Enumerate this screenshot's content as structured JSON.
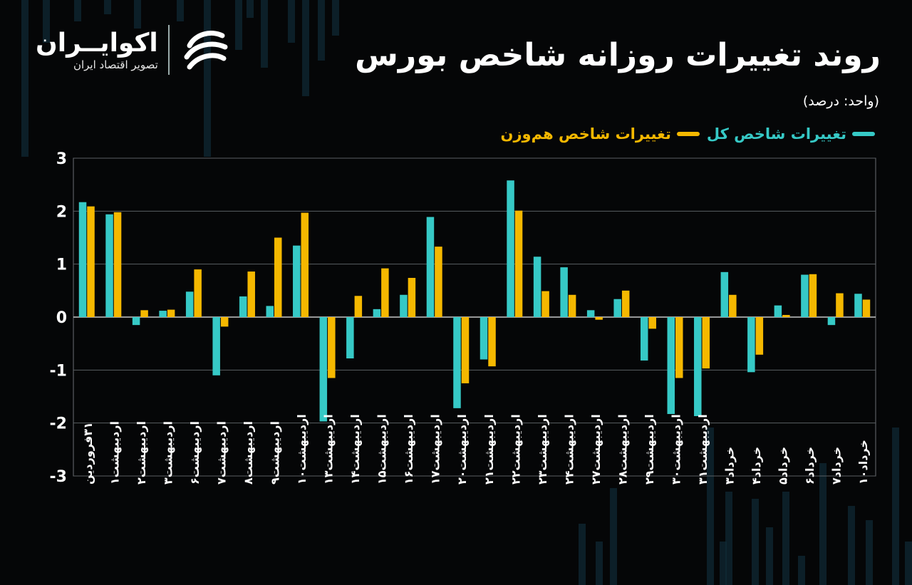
{
  "title": "روند تغییرات روزانه شاخص بورس",
  "unit_label": "(واحد: درصد)",
  "brand": {
    "name": "اکوایــران",
    "tagline": "تصویر اقتصاد ایران",
    "logo_icon": "ecoiran-swirl-icon"
  },
  "colors": {
    "background": "#050607",
    "teal": "#36c9c6",
    "gold": "#f5b800",
    "grid": "#5a5f63"
  },
  "chart_data": {
    "type": "bar",
    "ylim": [
      -3,
      3
    ],
    "yticks": [
      "3",
      "2",
      "1",
      "0",
      "-1",
      "-2",
      "-3"
    ],
    "ytick_values": [
      3,
      2,
      1,
      0,
      -1,
      -2,
      -3
    ],
    "grid": true,
    "legend_position": "top-right",
    "categories": [
      "۳۱فروردین",
      "اردیبهشت۱",
      "اردیبهشت۲",
      "اردیبهشت۳",
      "اردیبهشت۶",
      "اردیبهشت۷",
      "اردیبهشت۸",
      "اردیبهشت۹",
      "اردیبهشت۱۰",
      "اردیبهشت۱۳",
      "اردیبهشت۱۴",
      "اردیبهشت۱۵",
      "اردیبهشت۱۶",
      "اردیبهشت۱۷",
      "اردیبهشت۲۰",
      "اردیبهشت۲۱",
      "اردیبهشت۲۲",
      "اردیبهشت۲۳",
      "اردیبهشت۲۴",
      "اردیبهشت۲۷",
      "اردیبهشت۲۸",
      "اردیبهشت۲۹",
      "اردیبهشت۳۰",
      "اردیبهشت۳۱",
      "خرداد۳",
      "خرداد۴",
      "خرداد۵",
      "خرداد۶",
      "خرداد۷",
      "خرداد۱۰"
    ],
    "series": [
      {
        "name": "تغییرات شاخص کل",
        "color": "#36c9c6",
        "values": [
          2.17,
          1.94,
          -0.15,
          0.12,
          0.48,
          -1.1,
          0.39,
          0.21,
          1.35,
          -1.97,
          -0.78,
          0.15,
          0.42,
          1.89,
          -1.72,
          -0.8,
          2.58,
          1.14,
          0.94,
          0.13,
          0.34,
          -0.82,
          -1.83,
          -1.87,
          0.85,
          -1.04,
          0.22,
          0.8,
          -0.15,
          0.44
        ]
      },
      {
        "name": "تغییرات شاخص هم‌وزن",
        "color": "#f5b800",
        "values": [
          2.09,
          1.98,
          0.13,
          0.14,
          0.9,
          -0.18,
          0.86,
          1.5,
          1.97,
          -1.15,
          0.4,
          0.92,
          0.74,
          1.33,
          -1.25,
          -0.93,
          2.01,
          0.49,
          0.42,
          -0.05,
          0.5,
          -0.22,
          -1.15,
          -0.97,
          0.42,
          -0.71,
          0.04,
          0.81,
          0.45,
          0.33
        ]
      }
    ]
  }
}
